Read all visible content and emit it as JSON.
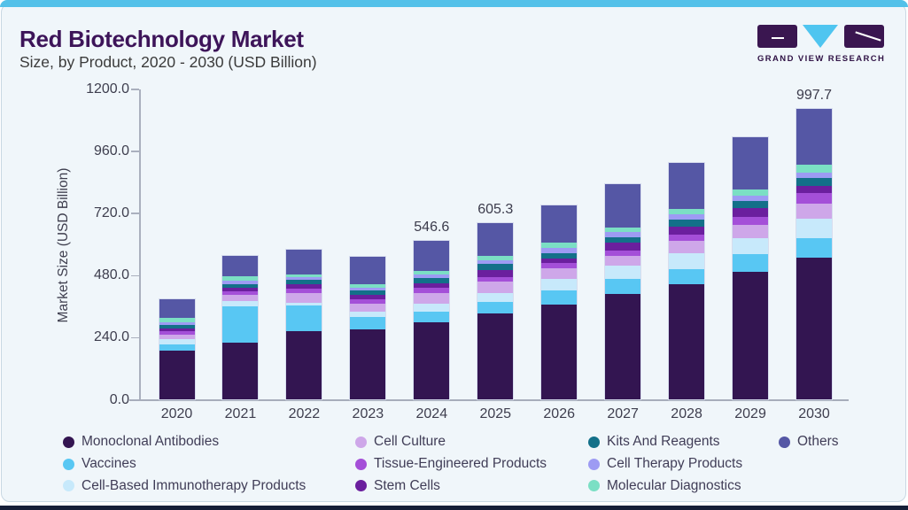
{
  "header": {
    "title": "Red Biotechnology Market",
    "subtitle": "Size, by Product, 2020 - 2030 (USD Billion)",
    "logo_text": "GRAND VIEW RESEARCH"
  },
  "colors": {
    "accent_strip": "#54C1E9",
    "bottom_strip": "#161F38",
    "card_bg": "#F0F6FA",
    "title": "#3D1459"
  },
  "chart_data": {
    "type": "bar",
    "stacked": true,
    "title": "Red Biotechnology Market Size, by Product, 2020 - 2030 (USD Billion)",
    "xlabel": "",
    "ylabel": "Market Size (USD Billion)",
    "categories": [
      "2020",
      "2021",
      "2022",
      "2023",
      "2024",
      "2025",
      "2026",
      "2027",
      "2028",
      "2029",
      "2030"
    ],
    "ytick_labels": [
      "0.0",
      "240.0",
      "480.0",
      "720.0",
      "960.0",
      "1200.0"
    ],
    "ylim": [
      0,
      1200
    ],
    "grid": false,
    "legend_position": "bottom",
    "bar_labels": {
      "2024": "546.6",
      "2025": "605.3",
      "2030": "997.7"
    },
    "series": [
      {
        "name": "Monoclonal Antibodies",
        "color": "#331551",
        "values": [
          169,
          195,
          234,
          241,
          266,
          295.5,
          326,
          362,
          395,
          440,
          487
        ]
      },
      {
        "name": "Vaccines",
        "color": "#58C7F3",
        "values": [
          22.2,
          126.7,
          88.1,
          43.7,
          35.4,
          40.4,
          50.7,
          52.8,
          53.4,
          58.6,
          69
        ]
      },
      {
        "name": "Cell-Based Immunotherapy Products",
        "color": "#C7E9FB",
        "values": [
          16.4,
          18.2,
          11,
          17,
          29.6,
          30.4,
          38.6,
          45.6,
          55.9,
          55.6,
          66
        ]
      },
      {
        "name": "Cell Culture",
        "color": "#CEA7E9",
        "values": [
          15.2,
          19.1,
          32.5,
          27.3,
          36.5,
          38.6,
          37.4,
          33.4,
          42.5,
          45.6,
          52.3
        ]
      },
      {
        "name": "Tissue-Engineered Products",
        "color": "#A44FD8",
        "values": [
          12.1,
          13.1,
          16.1,
          16.4,
          16.2,
          17,
          18.2,
          19.1,
          20,
          27.3,
          36.6
        ]
      },
      {
        "name": "Stem Cells",
        "color": "#6B1F9E",
        "values": [
          11,
          12.1,
          15.2,
          14,
          14.4,
          23.4,
          15.2,
          25.2,
          28.5,
          30.4,
          23.5
        ]
      },
      {
        "name": "Kits And Reagents",
        "color": "#137089",
        "values": [
          11.2,
          13.1,
          14.3,
          15.2,
          18.3,
          22.2,
          18.2,
          20.3,
          22.2,
          23.4,
          27.4
        ]
      },
      {
        "name": "Cell Therapy Products",
        "color": "#9D9BF3",
        "values": [
          8.2,
          10,
          11.2,
          11.2,
          12.2,
          12.1,
          17.3,
          18.2,
          20.3,
          20.3,
          19.2
        ]
      },
      {
        "name": "Molecular Diagnostics",
        "color": "#7BDFC4",
        "values": [
          15.2,
          15.2,
          9.1,
          12.1,
          12.3,
          13.4,
          17,
          15.2,
          18.2,
          20,
          26.3
        ]
      },
      {
        "name": "Others",
        "color": "#5557A5",
        "values": [
          63.8,
          70.8,
          84.1,
          93.2,
          105.7,
          112.3,
          129.7,
          148.8,
          157.9,
          179.2,
          190.4
        ]
      }
    ]
  }
}
